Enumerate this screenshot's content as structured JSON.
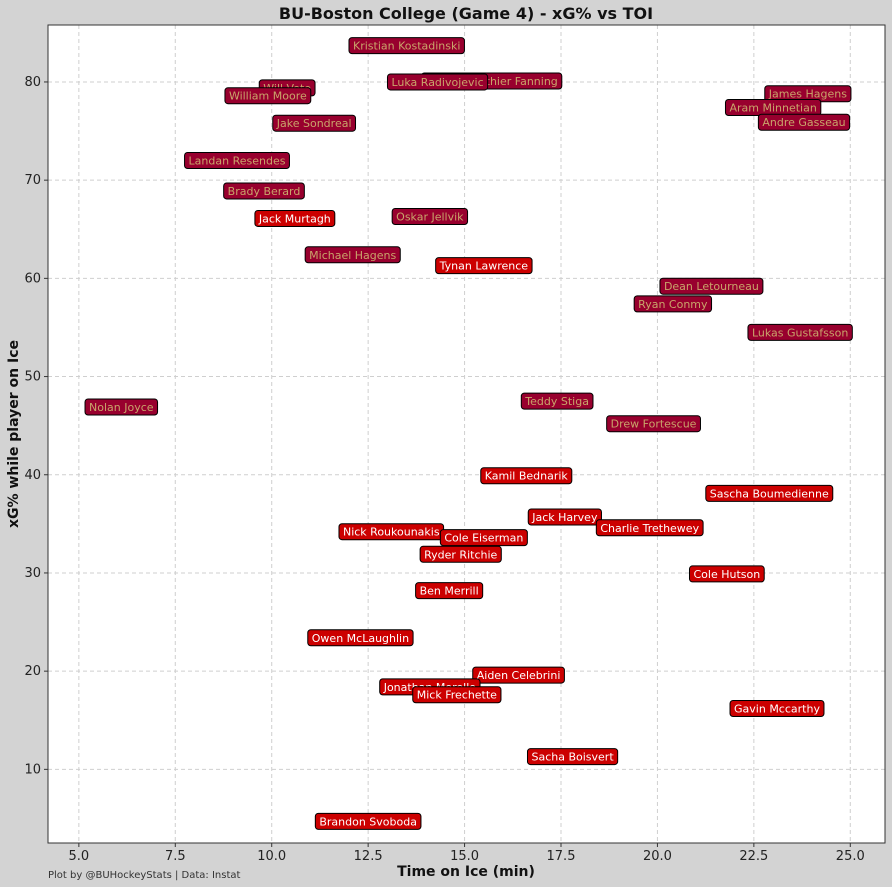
{
  "chart_data": {
    "type": "scatter",
    "title": "BU-Boston College (Game 4) - xG% vs TOI",
    "xlabel": "Time on Ice (min)",
    "ylabel": "xG% while player on Ice",
    "footer": "Plot by @BUHockeyStats | Data: Instat",
    "xlim": [
      4.2,
      25.9
    ],
    "ylim": [
      2.5,
      85.8
    ],
    "xticks": [
      5.0,
      7.5,
      10.0,
      12.5,
      15.0,
      17.5,
      20.0,
      22.5,
      25.0
    ],
    "xtick_labels": [
      "5.0",
      "7.5",
      "10.0",
      "12.5",
      "15.0",
      "17.5",
      "20.0",
      "22.5",
      "25.0"
    ],
    "yticks": [
      10,
      20,
      30,
      40,
      50,
      60,
      70,
      80
    ],
    "ytick_labels": [
      "10",
      "20",
      "30",
      "40",
      "50",
      "60",
      "70",
      "80"
    ],
    "grid": true,
    "colors": {
      "Boston College": {
        "fill": "#98002e",
        "text": "#c9a46a"
      },
      "BU": {
        "fill": "#cc0000",
        "text": "#ffffff"
      }
    },
    "points": [
      {
        "name": "Kristian Kostadinski",
        "team": "Boston College",
        "x": 13.5,
        "y": 83.7
      },
      {
        "name": "Will Vote",
        "team": "Boston College",
        "x": 10.4,
        "y": 79.4
      },
      {
        "name": "William Moore",
        "team": "Boston College",
        "x": 9.9,
        "y": 78.6
      },
      {
        "name": "Cutter Gauthier Fanning",
        "team": "Boston College",
        "x": 15.7,
        "y": 80.1
      },
      {
        "name": "Luka Radivojevic",
        "team": "Boston College",
        "x": 14.3,
        "y": 80.0
      },
      {
        "name": "James Hagens",
        "team": "Boston College",
        "x": 23.9,
        "y": 78.8
      },
      {
        "name": "Aram Minnetian",
        "team": "Boston College",
        "x": 23.0,
        "y": 77.4
      },
      {
        "name": "Andre Gasseau",
        "team": "Boston College",
        "x": 23.8,
        "y": 75.9
      },
      {
        "name": "Jake Sondreal",
        "team": "Boston College",
        "x": 11.1,
        "y": 75.8
      },
      {
        "name": "Landan Resendes",
        "team": "Boston College",
        "x": 9.1,
        "y": 72.0
      },
      {
        "name": "Brady Berard",
        "team": "Boston College",
        "x": 9.8,
        "y": 68.9
      },
      {
        "name": "Oskar Jellvik",
        "team": "Boston College",
        "x": 14.1,
        "y": 66.3
      },
      {
        "name": "Michael Hagens",
        "team": "Boston College",
        "x": 12.1,
        "y": 62.4
      },
      {
        "name": "Dean Letourneau",
        "team": "Boston College",
        "x": 21.4,
        "y": 59.2
      },
      {
        "name": "Ryan Conmy",
        "team": "Boston College",
        "x": 20.4,
        "y": 57.4
      },
      {
        "name": "Lukas Gustafsson",
        "team": "Boston College",
        "x": 23.7,
        "y": 54.5
      },
      {
        "name": "Nolan Joyce",
        "team": "Boston College",
        "x": 6.1,
        "y": 46.9
      },
      {
        "name": "Teddy Stiga",
        "team": "Boston College",
        "x": 17.4,
        "y": 47.5
      },
      {
        "name": "Drew Fortescue",
        "team": "Boston College",
        "x": 19.9,
        "y": 45.2
      },
      {
        "name": "Jack Murtagh",
        "team": "BU",
        "x": 10.6,
        "y": 66.1
      },
      {
        "name": "Tynan Lawrence",
        "team": "BU",
        "x": 15.5,
        "y": 61.3
      },
      {
        "name": "Kamil Bednarik",
        "team": "BU",
        "x": 16.6,
        "y": 39.9
      },
      {
        "name": "Sascha Boumedienne",
        "team": "BU",
        "x": 22.9,
        "y": 38.1
      },
      {
        "name": "Jack Harvey",
        "team": "BU",
        "x": 17.6,
        "y": 35.7
      },
      {
        "name": "Charlie Trethewey",
        "team": "BU",
        "x": 19.8,
        "y": 34.6
      },
      {
        "name": "Nick Roukounakis",
        "team": "BU",
        "x": 13.1,
        "y": 34.2
      },
      {
        "name": "Cole Eiserman",
        "team": "BU",
        "x": 15.5,
        "y": 33.6
      },
      {
        "name": "Ryder Ritchie",
        "team": "BU",
        "x": 14.9,
        "y": 31.9
      },
      {
        "name": "Cole Hutson",
        "team": "BU",
        "x": 21.8,
        "y": 29.9
      },
      {
        "name": "Ben Merrill",
        "team": "BU",
        "x": 14.6,
        "y": 28.2
      },
      {
        "name": "Owen McLaughlin",
        "team": "BU",
        "x": 12.3,
        "y": 23.4
      },
      {
        "name": "Aiden Celebrini",
        "team": "BU",
        "x": 16.4,
        "y": 19.6
      },
      {
        "name": "Jonathan Morello",
        "team": "BU",
        "x": 14.1,
        "y": 18.4
      },
      {
        "name": "Mick Frechette",
        "team": "BU",
        "x": 14.8,
        "y": 17.6
      },
      {
        "name": "Gavin Mccarthy",
        "team": "BU",
        "x": 23.1,
        "y": 16.2
      },
      {
        "name": "Sacha Boisvert",
        "team": "BU",
        "x": 17.8,
        "y": 11.3
      },
      {
        "name": "Brandon Svoboda",
        "team": "BU",
        "x": 12.5,
        "y": 4.7
      }
    ]
  }
}
